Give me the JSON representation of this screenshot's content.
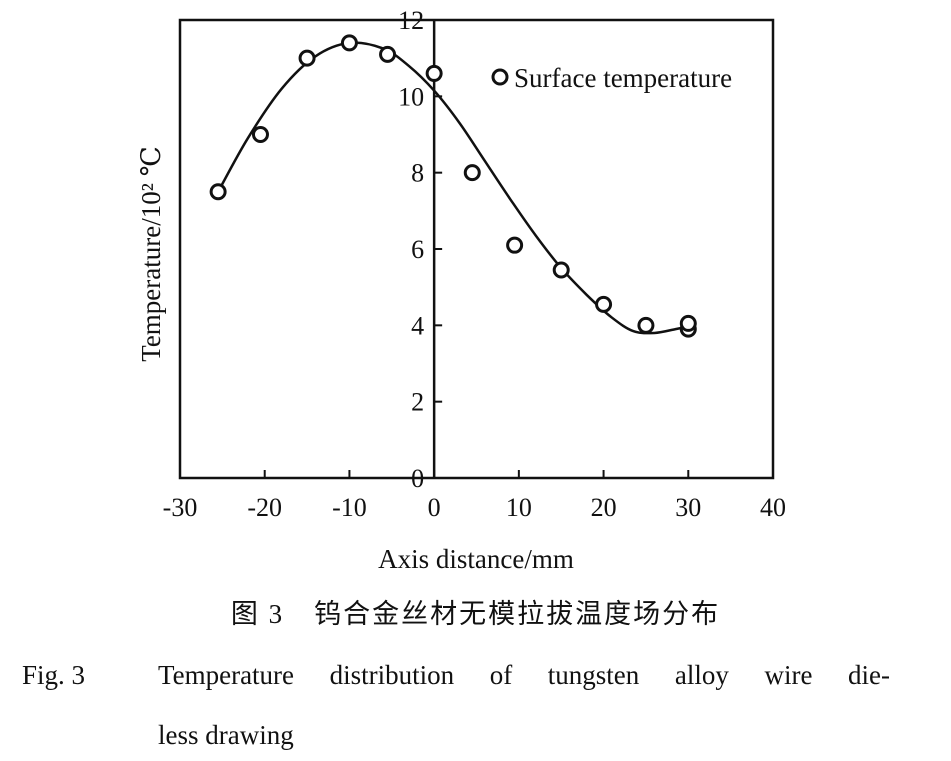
{
  "chart_data": {
    "type": "scatter",
    "xlabel": "Axis distance/mm",
    "ylabel": "Temperature/10² ℃",
    "xlim": [
      -30,
      40
    ],
    "ylim": [
      0,
      12
    ],
    "x_ticks": [
      -30,
      -20,
      -10,
      0,
      10,
      20,
      30,
      40
    ],
    "x_tick_labels": [
      "-30",
      "-20",
      "-10",
      "0",
      "10",
      "20",
      "30",
      "40"
    ],
    "y_ticks": [
      0,
      2,
      4,
      6,
      8,
      10,
      12
    ],
    "y_tick_labels": [
      "0",
      "2",
      "4",
      "6",
      "8",
      "10",
      "12"
    ],
    "grid": false,
    "legend_position": "top-right",
    "series": [
      {
        "name": "Surface temperature",
        "marker": "open-circle",
        "points": [
          {
            "x": -25.5,
            "y": 7.5
          },
          {
            "x": -20.5,
            "y": 9.0
          },
          {
            "x": -15,
            "y": 11.0
          },
          {
            "x": -10,
            "y": 11.4
          },
          {
            "x": -5.5,
            "y": 11.1
          },
          {
            "x": 0,
            "y": 10.6
          },
          {
            "x": 4.5,
            "y": 8.0
          },
          {
            "x": 9.5,
            "y": 6.1
          },
          {
            "x": 15,
            "y": 5.45
          },
          {
            "x": 20,
            "y": 4.55
          },
          {
            "x": 25,
            "y": 4.0
          },
          {
            "x": 30,
            "y": 3.9
          },
          {
            "x": 30,
            "y": 4.05
          }
        ]
      }
    ],
    "fit_curve": [
      {
        "x": -25.5,
        "y": 7.5
      },
      {
        "x": -22,
        "y": 8.9
      },
      {
        "x": -18,
        "y": 10.2
      },
      {
        "x": -14,
        "y": 11.05
      },
      {
        "x": -10,
        "y": 11.4
      },
      {
        "x": -6,
        "y": 11.25
      },
      {
        "x": -3,
        "y": 10.8
      },
      {
        "x": 0,
        "y": 10.15
      },
      {
        "x": 3,
        "y": 9.3
      },
      {
        "x": 6,
        "y": 8.3
      },
      {
        "x": 9,
        "y": 7.3
      },
      {
        "x": 12,
        "y": 6.35
      },
      {
        "x": 15,
        "y": 5.5
      },
      {
        "x": 18,
        "y": 4.8
      },
      {
        "x": 21,
        "y": 4.2
      },
      {
        "x": 23.5,
        "y": 3.85
      },
      {
        "x": 26,
        "y": 3.8
      },
      {
        "x": 28.5,
        "y": 3.9
      },
      {
        "x": 30.5,
        "y": 4.0
      }
    ]
  },
  "caption": {
    "cn_label": "图 3",
    "cn_text": "钨合金丝材无模拉拔温度场分布",
    "en_label": "Fig. 3",
    "en_line1": "Temperature distribution of tungsten alloy wire die-",
    "en_line2": "less drawing"
  }
}
